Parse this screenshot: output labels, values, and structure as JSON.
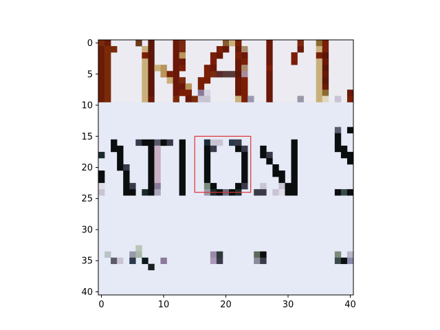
{
  "figure": {
    "x_ticks": [
      "0",
      "10",
      "20",
      "30",
      "40"
    ],
    "y_ticks": [
      "0",
      "5",
      "10",
      "15",
      "20",
      "25",
      "30",
      "35",
      "40"
    ],
    "x_tick_values": [
      0,
      10,
      20,
      30,
      40
    ],
    "y_tick_values": [
      0,
      5,
      10,
      15,
      20,
      25,
      30,
      35,
      40
    ],
    "extent": [
      -0.5,
      40.5,
      40.5,
      -0.5
    ],
    "highlight_box": {
      "x0": 15.0,
      "y0": 15.0,
      "x1": 24.0,
      "y1": 24.0,
      "color": "#e03030"
    },
    "colors": {
      "paper": "#e6eaf6",
      "paper_top": "#ecebf2",
      "ink_dark": "#0a0e0e",
      "ink_brown": "#7a1e06",
      "ink_tan": "#c9b07a",
      "frame": "#000000"
    },
    "pixel_runs": [
      {
        "y": 0,
        "x": [
          0,
          1,
          6,
          8,
          12,
          13,
          20,
          21,
          22,
          27,
          32,
          35,
          36
        ],
        "c": [
          "#7a2a08",
          "#6a1c06",
          "#6a3a1a",
          "#5a1608",
          "#6a1808",
          "#7a2a10",
          "#8a5a30",
          "#c9b07a",
          "#7a1e06",
          "#6a1808",
          "#7a2a10",
          "#8a6a30",
          "#7a1e06"
        ]
      },
      {
        "y": 1,
        "x": [
          0,
          1,
          2,
          7,
          8,
          12,
          13,
          19,
          20,
          22,
          23,
          27,
          32,
          35,
          36
        ],
        "c": [
          "#6a1c06",
          "#7a2a08",
          "#7a2a08",
          "#c9b07a",
          "#5a1608",
          "#6a1808",
          "#7a2a10",
          "#7a1e06",
          "#6a1808",
          "#6a1808",
          "#a98a6a",
          "#6a1808",
          "#6a1808",
          "#c9b07a",
          "#7a1e06"
        ]
      },
      {
        "y": 2,
        "x": [
          0,
          1,
          7,
          8,
          12,
          13,
          18,
          19,
          22,
          23,
          27,
          31,
          35,
          36
        ],
        "c": [
          "#6a1c06",
          "#7a2a08",
          "#7a1e06",
          "#5a1608",
          "#6a1808",
          "#b8955a",
          "#7a1e06",
          "#6a1808",
          "#7a1e06",
          "#6a1808",
          "#6a1808",
          "#7a1e06",
          "#7a1e06",
          "#5a1608"
        ]
      },
      {
        "y": 3,
        "x": [
          0,
          1,
          7,
          8,
          12,
          13,
          18,
          22,
          23,
          27,
          31,
          35,
          36
        ],
        "c": [
          "#6a1c06",
          "#7a2a08",
          "#c9b07a",
          "#5a1608",
          "#6a1808",
          "#6a1808",
          "#7a1e06",
          "#6a1808",
          "#7a1e06",
          "#6a1808",
          "#7a1e06",
          "#c9b07a",
          "#6a1808"
        ]
      },
      {
        "y": 4,
        "x": [
          0,
          1,
          7,
          8,
          9,
          10,
          12,
          13,
          17,
          18,
          22,
          23,
          27,
          35,
          36
        ],
        "c": [
          "#6a1c06",
          "#7a2a08",
          "#c9b07a",
          "#5a1608",
          "#c9b07a",
          "#b8955a",
          "#6a1808",
          "#7a1e06",
          "#7a1e06",
          "#6a1808",
          "#6a1808",
          "#a98a6a",
          "#7a1e06",
          "#c9b07a",
          "#5a1608"
        ]
      },
      {
        "y": 5,
        "x": [
          0,
          1,
          7,
          8,
          10,
          11,
          12,
          17,
          18,
          19,
          20,
          21,
          22,
          23,
          27,
          35,
          36
        ],
        "c": [
          "#6a1c06",
          "#7a2a08",
          "#c9b07a",
          "#5a1608",
          "#b8955a",
          "#7a1e06",
          "#6a1808",
          "#7a1e06",
          "#7a2a10",
          "#5a2a2a",
          "#5a3a3a",
          "#5a3a3a",
          "#5a1608",
          "#a98a9a",
          "#6a1808",
          "#c9b07a",
          "#6a1808"
        ]
      },
      {
        "y": 6,
        "x": [
          0,
          1,
          7,
          8,
          11,
          12,
          13,
          16,
          17,
          22,
          23,
          27,
          35,
          36
        ],
        "c": [
          "#6a1c06",
          "#7a2a08",
          "#c9b07a",
          "#5a1608",
          "#c9b07a",
          "#6a1808",
          "#7a2a10",
          "#7a1e06",
          "#7a1e06",
          "#6a1808",
          "#7a1e06",
          "#6a1808",
          "#c9b07a",
          "#5a1608"
        ]
      },
      {
        "y": 7,
        "x": [
          0,
          1,
          7,
          8,
          12,
          13,
          14,
          16,
          22,
          23,
          27,
          35,
          36
        ],
        "c": [
          "#6a1c06",
          "#7a2a08",
          "#c9b07a",
          "#5a1608",
          "#6a1808",
          "#6a1808",
          "#b8955a",
          "#7a1e06",
          "#6a1808",
          "#7a1e06",
          "#6a1808",
          "#c9b07a",
          "#6a1808"
        ]
      },
      {
        "y": 8,
        "x": [
          0,
          1,
          7,
          8,
          12,
          13,
          14,
          16,
          17,
          22,
          23,
          27,
          35,
          36,
          40
        ],
        "c": [
          "#6a1c06",
          "#7a2a08",
          "#c9b07a",
          "#5a1608",
          "#6a1808",
          "#7a1e06",
          "#7a1e06",
          "#8a7a9a",
          "#d8d4e4",
          "#6a1808",
          "#7a1e06",
          "#6a1808",
          "#c9b07a",
          "#8a6a30",
          "#6a1808"
        ]
      },
      {
        "y": 9,
        "x": [
          0,
          1,
          7,
          8,
          12,
          14,
          15,
          16,
          17,
          22,
          23,
          24,
          27,
          32,
          35,
          36,
          38,
          40
        ],
        "c": [
          "#6a1c06",
          "#7a2a08",
          "#c9b07a",
          "#6a1808",
          "#7a2a08",
          "#6a1808",
          "#7a2a08",
          "#c9c4d4",
          "#c9c4d4",
          "#c9b07a",
          "#7a1e06",
          "#9a98b0",
          "#6a1808",
          "#9a98a8",
          "#c9b07a",
          "#e0d8c0",
          "#c9c4d4",
          "#7a1e06"
        ]
      },
      {
        "y": 14,
        "x": [
          38,
          40
        ],
        "c": [
          "#5a6070",
          "#0a0e0e"
        ]
      },
      {
        "y": 15,
        "x": [
          38
        ],
        "c": [
          "#0a0e0e"
        ]
      },
      {
        "y": 16,
        "x": [
          2,
          6,
          7,
          8,
          9,
          10,
          11,
          13,
          17,
          18,
          19,
          21,
          22,
          31,
          38
        ],
        "c": [
          "#0a0e0e",
          "#3a3a4a",
          "#0a0e0e",
          "#0a0e0e",
          "#5a5a6a",
          "#0a0e0e",
          "#3a3a4a",
          "#0a0e0e",
          "#1a2a3a",
          "#c9c4d4",
          "#c9c4d4",
          "#2a3a4a",
          "#3a3a4a",
          "#0a0e0e",
          "#0a0e0e"
        ]
      },
      {
        "y": 17,
        "x": [
          2,
          3,
          8,
          9,
          13,
          17,
          18,
          22,
          23,
          26,
          31,
          38,
          39
        ],
        "c": [
          "#0a0e0e",
          "#0a0e0e",
          "#0a0e0e",
          "#c9b0c4",
          "#0a0e0e",
          "#0a0e0e",
          "#3a3a4a",
          "#0a0e0e",
          "#3a3a4a",
          "#0a0e0e",
          "#0a0e0e",
          "#0a0e0e",
          "#0a0e0e"
        ]
      },
      {
        "y": 18,
        "x": [
          0,
          3,
          8,
          9,
          13,
          17,
          23,
          26,
          27,
          31,
          39,
          40
        ],
        "c": [
          "#1a2a2a",
          "#0a0e0e",
          "#0a0e0e",
          "#c9b0c4",
          "#0a0e0e",
          "#0a0e0e",
          "#0a0e0e",
          "#0a0e0e",
          "#3a3a4a",
          "#0a0e0e",
          "#0a0e0e",
          "#0a0e0e"
        ]
      },
      {
        "y": 19,
        "x": [
          3,
          8,
          9,
          13,
          17,
          23,
          27,
          31,
          40
        ],
        "c": [
          "#0a0e0e",
          "#0a0e0e",
          "#c9b0c4",
          "#0a0e0e",
          "#0a0e0e",
          "#0a0e0e",
          "#0a0e0e",
          "#0a0e0e",
          "#0a0e0e"
        ]
      },
      {
        "y": 20,
        "x": [
          3,
          4,
          8,
          9,
          13,
          17,
          23,
          28,
          31
        ],
        "c": [
          "#0a0e0e",
          "#3a3a4a",
          "#0a0e0e",
          "#c9b0c4",
          "#0a0e0e",
          "#0a0e0e",
          "#0a0e0e",
          "#0a0e0e",
          "#0a0e0e"
        ]
      },
      {
        "y": 21,
        "x": [
          0,
          4,
          8,
          9,
          13,
          17,
          23,
          28,
          29,
          31
        ],
        "c": [
          "#0a0e0e",
          "#0a0e0e",
          "#0a0e0e",
          "#c9b0c4",
          "#0a0e0e",
          "#0a0e0e",
          "#0a0e0e",
          "#0a0e0e",
          "#0a0e0e",
          "#0a0e0e"
        ]
      },
      {
        "y": 22,
        "x": [
          0,
          4,
          8,
          9,
          13,
          17,
          23,
          29,
          31
        ],
        "c": [
          "#0a0e0e",
          "#0a0e0e",
          "#0a0e0e",
          "#c9b0c4",
          "#0a0e0e",
          "#0a0e0e",
          "#0a0e0e",
          "#0a0e0e",
          "#0a0e0e"
        ]
      },
      {
        "y": 23,
        "x": [
          0,
          4,
          5,
          8,
          9,
          13,
          17,
          18,
          22,
          23,
          26,
          29,
          30,
          31
        ],
        "c": [
          "#e0dce8",
          "#0a0e0e",
          "#3a3a4a",
          "#0a0e0e",
          "#8a7a9a",
          "#0a0e0e",
          "#7a8a7a",
          "#0a0e0e",
          "#0a0e0e",
          "#3a3a4a",
          "#c9c4d4",
          "#c9c4d4",
          "#0a0e0e",
          "#0a0e0e"
        ]
      },
      {
        "y": 24,
        "x": [
          0,
          4,
          5,
          7,
          8,
          9,
          13,
          17,
          18,
          19,
          20,
          21,
          22,
          25,
          26,
          28,
          29,
          30,
          31,
          38,
          39,
          40
        ],
        "c": [
          "#c9c4d4",
          "#0a0e0e",
          "#0a0e0e",
          "#1a2a2a",
          "#0a0e0e",
          "#a8a8b8",
          "#0a0e0e",
          "#9a9aaa",
          "#1a2a2a",
          "#0a0e0e",
          "#6a6a7a",
          "#0a0e0e",
          "#1a2a2a",
          "#3a3a4a",
          "#3a3a4a",
          "#c9c4d4",
          "#e0dce8",
          "#0a0e0e",
          "#0a0e0e",
          "#0a0e0e",
          "#3a4a4a",
          "#0a0e0e"
        ]
      },
      {
        "y": 33,
        "x": [
          6
        ],
        "c": [
          "#b8c4b8"
        ]
      },
      {
        "y": 34,
        "x": [
          1,
          5,
          6,
          18,
          19,
          25,
          26,
          38,
          40
        ],
        "c": [
          "#b8c4c8",
          "#9a9aaa",
          "#a8b8a8",
          "#9a8aaa",
          "#2a3a3a",
          "#5a6a5a",
          "#0a0e0e",
          "#7a8a7a",
          "#b8b8c8"
        ]
      },
      {
        "y": 35,
        "x": [
          2,
          3,
          5,
          7,
          10,
          18,
          19,
          25,
          26,
          38,
          39,
          40
        ],
        "c": [
          "#5a5a6a",
          "#c9c4d4",
          "#2a3a4a",
          "#0a1a1a",
          "#8a7a9a",
          "#aa98b8",
          "#3a3a4a",
          "#8a8a9a",
          "#3a3a4a",
          "#3a4a4a",
          "#0a0e0e",
          "#8a8aaa"
        ]
      },
      {
        "y": 36,
        "x": [
          8
        ],
        "c": [
          "#1a2020"
        ]
      }
    ]
  }
}
